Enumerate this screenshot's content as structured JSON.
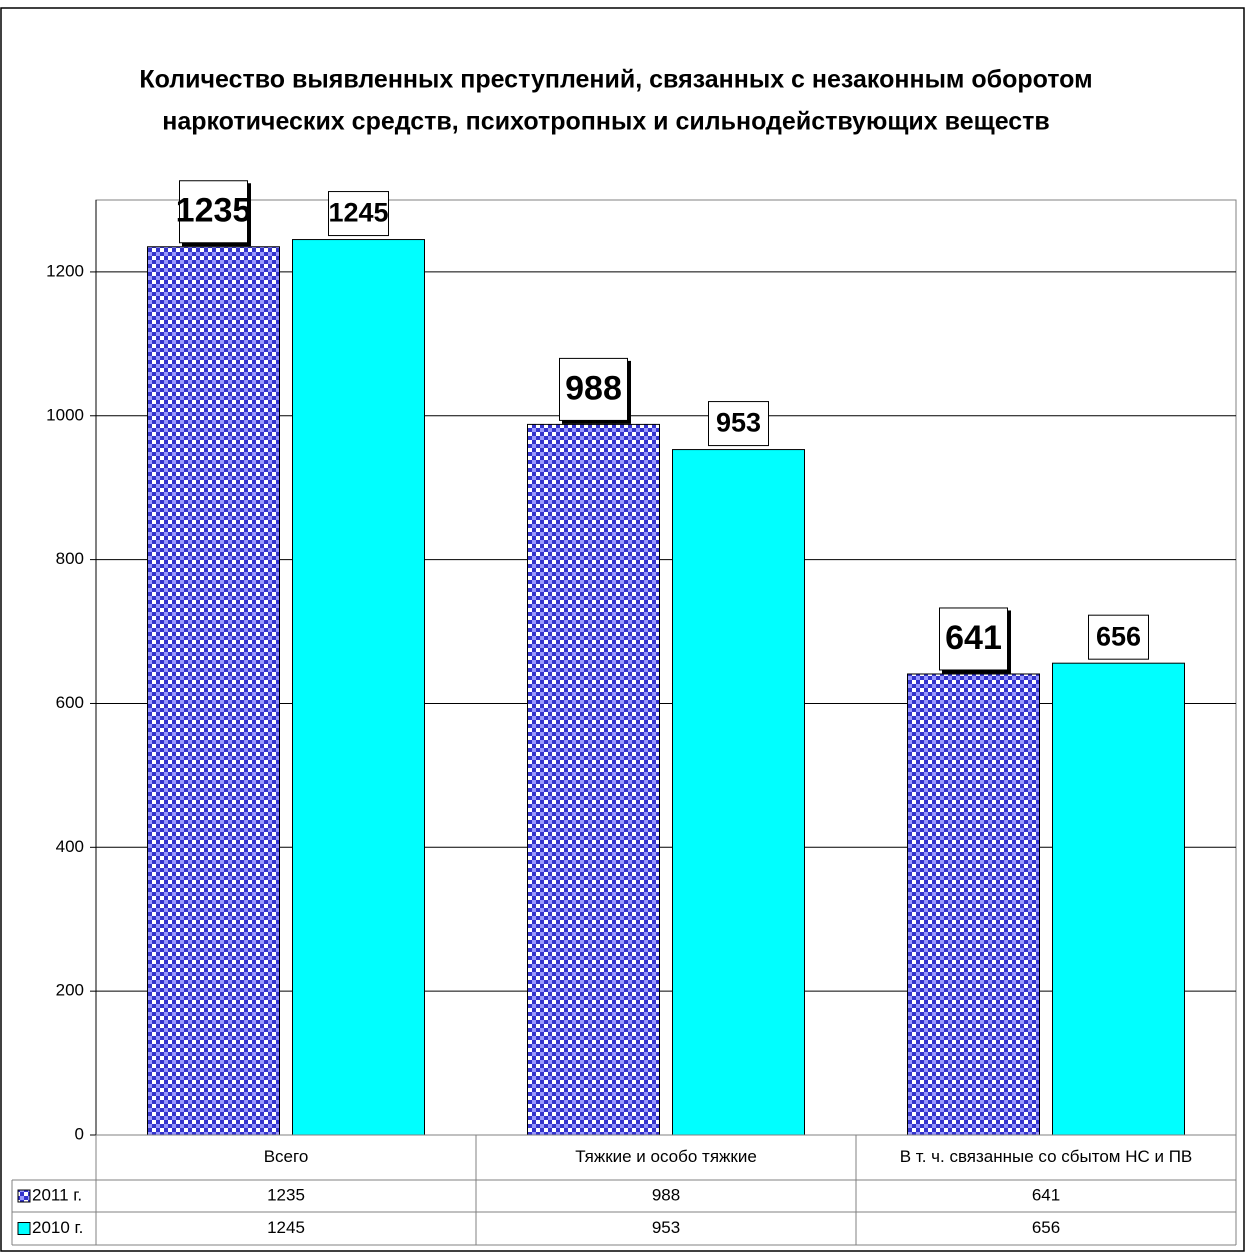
{
  "chart_data": {
    "type": "bar",
    "title": [
      "Количество выявленных преступлений, связанных с незаконным оборотом",
      "наркотических средств, психотропных и сильнодействующих веществ"
    ],
    "categories": [
      "Всего",
      "Тяжкие и особо тяжкие",
      "В т. ч. связанные со сбытом НС и ПВ"
    ],
    "series": [
      {
        "name": "2011 г.",
        "color": "#3333cc",
        "values": [
          1235,
          988,
          641
        ]
      },
      {
        "name": "2010 г.",
        "color": "#00ffff",
        "values": [
          1245,
          953,
          656
        ]
      }
    ],
    "ylim": [
      0,
      1300
    ],
    "yticks": [
      0,
      200,
      400,
      600,
      800,
      1000,
      1200
    ],
    "grid": true,
    "data_table": true
  }
}
